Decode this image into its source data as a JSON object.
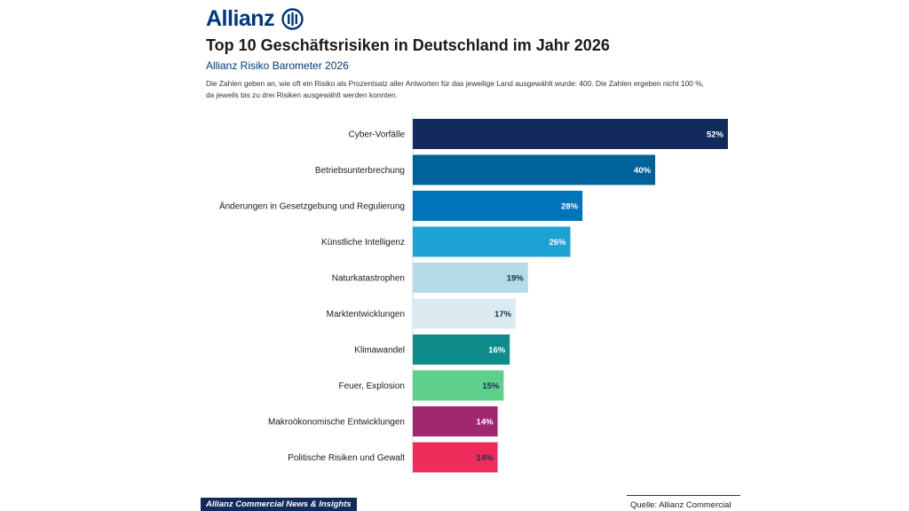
{
  "brand": {
    "logo_text": "Allianz"
  },
  "header": {
    "title": "Top 10 Geschäftsrisiken in Deutschland im Jahr 2026",
    "subtitle": "Allianz Risiko Barometer 2026",
    "description": "Die Zahlen geben an, wie oft ein Risiko als Prozentsatz aller Antworten für das jeweilige Land ausgewählt wurde: 400. Die Zahlen ergeben nicht 100 %, da jeweils bis zu drei Risiken ausgewählt werden konnten."
  },
  "chart_data": {
    "type": "bar",
    "orientation": "horizontal",
    "title": "Top 10 Geschäftsrisiken in Deutschland im Jahr 2026",
    "subtitle": "Allianz Risiko Barometer 2026",
    "categories": [
      "Cyber-Vorfälle",
      "Betriebsunterbrechung",
      "Änderungen in Gesetzgebung und Regulierung",
      "Künstliche Intelligenz",
      "Naturkatastrophen",
      "Marktentwicklungen",
      "Klimawandel",
      "Feuer, Explosion",
      "Makroökonomische Entwicklungen",
      "Politische Risiken und Gewalt"
    ],
    "values": [
      52,
      40,
      28,
      26,
      19,
      17,
      16,
      15,
      14,
      14
    ],
    "value_labels": [
      "52%",
      "40%",
      "28%",
      "26%",
      "19%",
      "17%",
      "16%",
      "15%",
      "14%",
      "14%"
    ],
    "colors": [
      "#122b5c",
      "#00629b",
      "#0074b8",
      "#1da2d4",
      "#b5dbe8",
      "#dcebf2",
      "#0f8c8a",
      "#5fcf8c",
      "#a02870",
      "#ee2c5c"
    ],
    "label_colors": [
      "#ffffff",
      "#ffffff",
      "#ffffff",
      "#ffffff",
      "#1a3050",
      "#1a3050",
      "#ffffff",
      "#1a3050",
      "#ffffff",
      "#1a3050"
    ],
    "unit": "%",
    "xlim": [
      0,
      52
    ],
    "grid": false,
    "xlabel": "",
    "ylabel": ""
  },
  "footer": {
    "badge": "Allianz Commercial News & Insights",
    "source": "Quelle: Allianz Commercial"
  }
}
